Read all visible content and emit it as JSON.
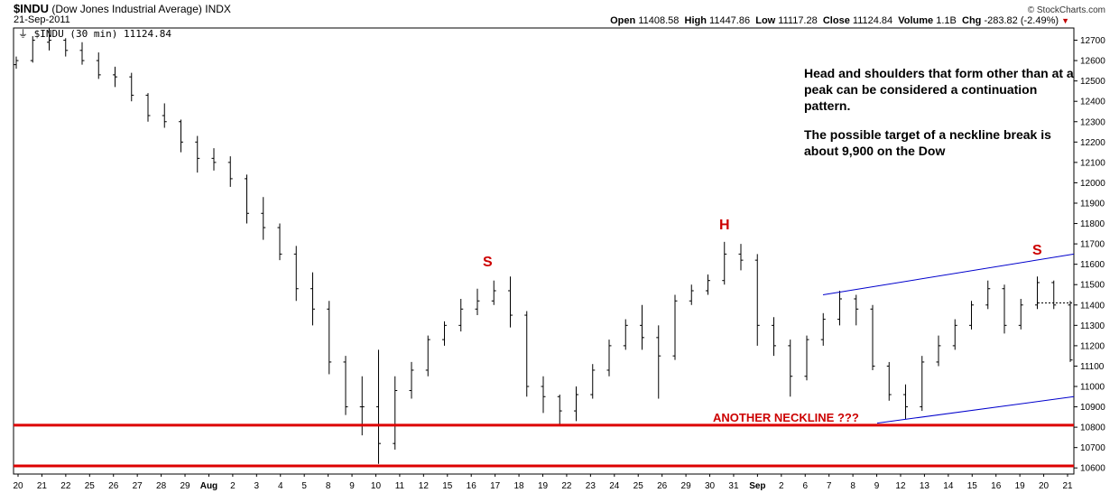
{
  "header": {
    "symbol": "$INDU",
    "name": "(Dow Jones Industrial Average)",
    "exchange": "INDX",
    "date": "21-Sep-2011",
    "brand": "© StockCharts.com",
    "open_label": "Open",
    "open": "11408.58",
    "high_label": "High",
    "high": "11447.86",
    "low_label": "Low",
    "low": "11117.28",
    "close_label": "Close",
    "close": "11124.84",
    "volume_label": "Volume",
    "volume": "1.1B",
    "chg_label": "Chg",
    "chg": "-283.82 (-2.49%)"
  },
  "legend": "$INDU (30 min) 11124.84",
  "annotations": {
    "note_1": "Head and shoulders that form other than at a peak can be considered a continuation pattern.",
    "note_2": "The possible target of a neckline break is about 9,900 on the Dow",
    "left_shoulder": "S",
    "head": "H",
    "right_shoulder": "S",
    "neckline_label": "ANOTHER NECKLINE ???"
  },
  "colors": {
    "price": "#000000",
    "red_lines": "#dd0000",
    "blue_lines": "#0000cc",
    "labels": "#cc0000"
  },
  "chart_data": {
    "type": "ohlc",
    "title": "$INDU (30 min)",
    "ylim": [
      10570,
      12760
    ],
    "yticks": [
      10600,
      10700,
      10800,
      10900,
      11000,
      11100,
      11200,
      11300,
      11400,
      11500,
      11600,
      11700,
      11800,
      11900,
      12000,
      12100,
      12200,
      12300,
      12400,
      12500,
      12600,
      12700
    ],
    "x_ticks": [
      "20",
      "21",
      "22",
      "25",
      "26",
      "27",
      "28",
      "29",
      "Aug",
      "2",
      "3",
      "4",
      "5",
      "8",
      "9",
      "10",
      "11",
      "12",
      "15",
      "16",
      "17",
      "18",
      "19",
      "22",
      "23",
      "24",
      "25",
      "26",
      "29",
      "30",
      "31",
      "Sep",
      "2",
      "6",
      "7",
      "8",
      "9",
      "12",
      "13",
      "14",
      "15",
      "16",
      "19",
      "20",
      "21"
    ],
    "grid": false,
    "series": [
      {
        "values": [
          [
            12580,
            12620,
            12560,
            12600
          ],
          [
            12600,
            12720,
            12590,
            12700
          ],
          [
            12690,
            12760,
            12650,
            12700
          ],
          [
            12700,
            12710,
            12620,
            12650
          ],
          [
            12650,
            12690,
            12580,
            12600
          ],
          [
            12600,
            12640,
            12510,
            12530
          ],
          [
            12530,
            12570,
            12470,
            12520
          ],
          [
            12520,
            12540,
            12400,
            12430
          ],
          [
            12430,
            12440,
            12300,
            12330
          ],
          [
            12330,
            12390,
            12270,
            12300
          ],
          [
            12300,
            12310,
            12150,
            12200
          ],
          [
            12200,
            12230,
            12050,
            12120
          ],
          [
            12120,
            12170,
            12060,
            12100
          ],
          [
            12100,
            12130,
            11980,
            12020
          ],
          [
            12020,
            12040,
            11800,
            11850
          ],
          [
            11850,
            11930,
            11720,
            11780
          ],
          [
            11780,
            11800,
            11620,
            11650
          ],
          [
            11650,
            11690,
            11420,
            11480
          ],
          [
            11480,
            11560,
            11300,
            11380
          ],
          [
            11380,
            11420,
            11060,
            11120
          ],
          [
            11120,
            11150,
            10860,
            10900
          ],
          [
            10900,
            11050,
            10760,
            10900
          ],
          [
            10900,
            11180,
            10620,
            10720
          ],
          [
            10720,
            11050,
            10690,
            10980
          ],
          [
            10980,
            11120,
            10940,
            11080
          ],
          [
            11080,
            11250,
            11050,
            11230
          ],
          [
            11230,
            11320,
            11200,
            11300
          ],
          [
            11300,
            11430,
            11270,
            11380
          ],
          [
            11380,
            11480,
            11350,
            11420
          ],
          [
            11420,
            11520,
            11400,
            11470
          ],
          [
            11470,
            11540,
            11290,
            11350
          ],
          [
            11350,
            11370,
            10950,
            11000
          ],
          [
            11000,
            11050,
            10870,
            10950
          ],
          [
            10950,
            10960,
            10810,
            10880
          ],
          [
            10880,
            11000,
            10830,
            10960
          ],
          [
            10960,
            11110,
            10940,
            11080
          ],
          [
            11080,
            11230,
            11050,
            11200
          ],
          [
            11200,
            11330,
            11180,
            11300
          ],
          [
            11300,
            11400,
            11180,
            11240
          ],
          [
            11240,
            11300,
            10940,
            11150
          ],
          [
            11150,
            11450,
            11130,
            11420
          ],
          [
            11420,
            11500,
            11400,
            11470
          ],
          [
            11470,
            11550,
            11450,
            11520
          ],
          [
            11520,
            11710,
            11500,
            11650
          ],
          [
            11650,
            11700,
            11570,
            11620
          ],
          [
            11620,
            11650,
            11200,
            11300
          ],
          [
            11300,
            11340,
            11150,
            11200
          ],
          [
            11200,
            11230,
            10950,
            11050
          ],
          [
            11050,
            11250,
            11030,
            11230
          ],
          [
            11230,
            11360,
            11200,
            11330
          ],
          [
            11330,
            11470,
            11300,
            11430
          ],
          [
            11430,
            11450,
            11300,
            11380
          ],
          [
            11380,
            11400,
            11080,
            11100
          ],
          [
            11100,
            11120,
            10930,
            10960
          ],
          [
            10960,
            11010,
            10840,
            10900
          ],
          [
            10900,
            11150,
            10880,
            11120
          ],
          [
            11120,
            11250,
            11100,
            11200
          ],
          [
            11200,
            11330,
            11180,
            11300
          ],
          [
            11300,
            11420,
            11280,
            11400
          ],
          [
            11400,
            11520,
            11380,
            11480
          ],
          [
            11480,
            11500,
            11260,
            11300
          ],
          [
            11300,
            11430,
            11280,
            11400
          ],
          [
            11400,
            11540,
            11380,
            11510
          ],
          [
            11510,
            11520,
            11380,
            11400
          ],
          [
            11400,
            11420,
            11120,
            11130
          ]
        ]
      }
    ]
  }
}
